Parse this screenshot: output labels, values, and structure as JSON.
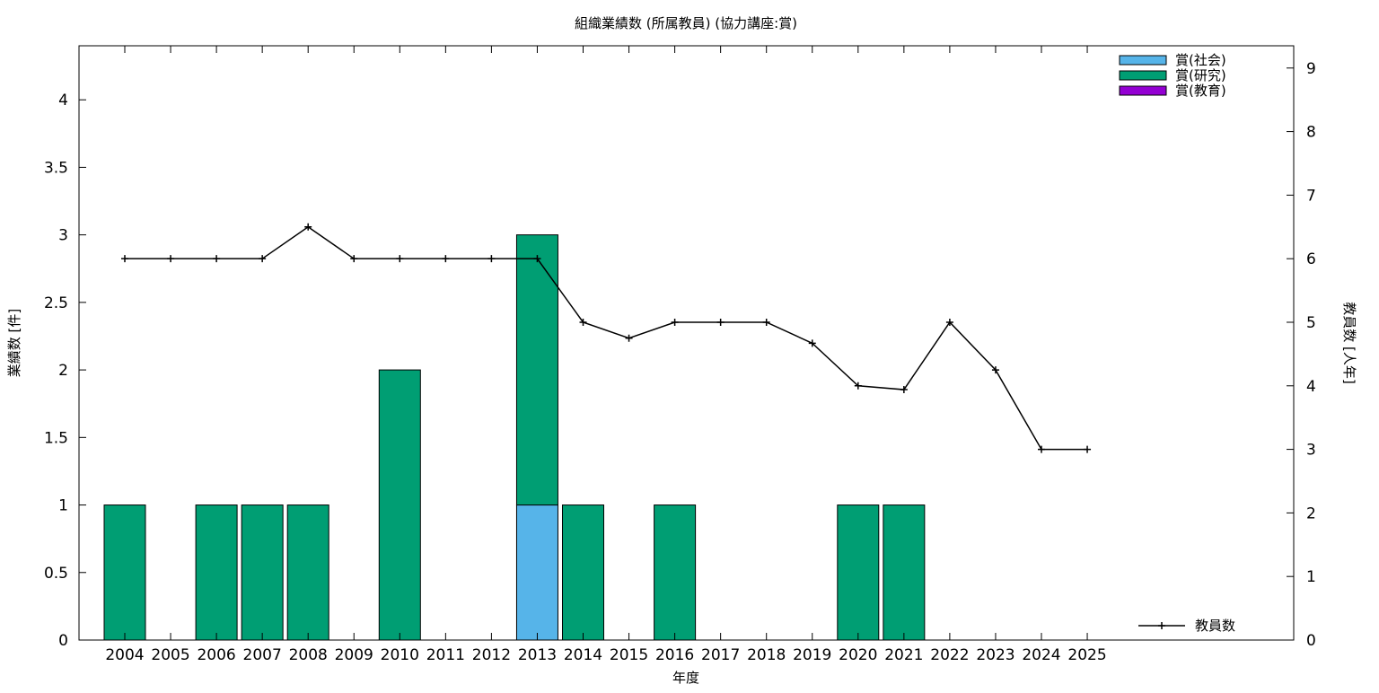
{
  "chart_data": {
    "type": "bar",
    "title": "組織業績数 (所属教員) (協力講座:賞)",
    "xlabel": "年度",
    "ylabel": "業績数 [件]",
    "y2label": "教員数 [人年]",
    "categories": [
      "2004",
      "2005",
      "2006",
      "2007",
      "2008",
      "2009",
      "2010",
      "2011",
      "2012",
      "2013",
      "2014",
      "2015",
      "2016",
      "2017",
      "2018",
      "2019",
      "2020",
      "2021",
      "2022",
      "2023",
      "2024",
      "2025"
    ],
    "ylim": [
      0,
      4.4
    ],
    "y_ticks": [
      "0",
      "0.5",
      "1",
      "1.5",
      "2",
      "2.5",
      "3",
      "3.5",
      "4"
    ],
    "y2lim": [
      0,
      9.35
    ],
    "y2_ticks": [
      "0",
      "1",
      "2",
      "3",
      "4",
      "5",
      "6",
      "7",
      "8",
      "9"
    ],
    "stacked": true,
    "series": [
      {
        "name": "賞(社会)",
        "color": "#56b4e9",
        "values": [
          0,
          0,
          0,
          0,
          0,
          0,
          0,
          0,
          0,
          1,
          0,
          0,
          0,
          0,
          0,
          0,
          0,
          0,
          0,
          0,
          0,
          0
        ]
      },
      {
        "name": "賞(研究)",
        "color": "#009e73",
        "values": [
          1,
          0,
          1,
          1,
          1,
          0,
          2,
          0,
          0,
          2,
          1,
          0,
          1,
          0,
          0,
          0,
          1,
          1,
          0,
          0,
          0,
          0
        ]
      },
      {
        "name": "賞(教育)",
        "color": "#9400d3",
        "values": [
          0,
          0,
          0,
          0,
          0,
          0,
          0,
          0,
          0,
          0,
          0,
          0,
          0,
          0,
          0,
          0,
          0,
          0,
          0,
          0,
          0,
          0
        ]
      }
    ],
    "line_series": {
      "name": "教員数",
      "color": "#000000",
      "axis": "y2",
      "values": [
        6,
        6,
        6,
        6,
        6.5,
        6,
        6,
        6,
        6,
        6,
        5,
        4.75,
        5,
        5,
        5,
        4.67,
        4,
        3.94,
        5,
        4.25,
        3,
        3
      ]
    },
    "legend_position": "top-right",
    "line_legend_position": "bottom-right",
    "grid": false
  }
}
